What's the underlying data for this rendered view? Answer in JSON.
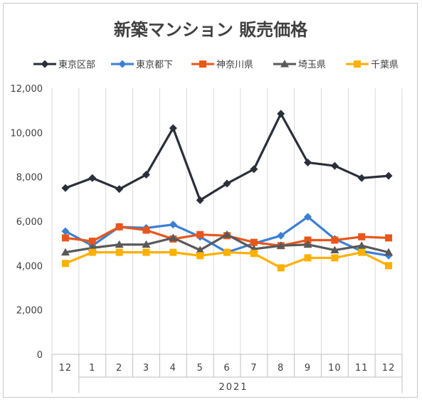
{
  "chart_data": {
    "type": "line",
    "title": "新築マンション 販売価格",
    "x_group_label": "2021",
    "categories": [
      "12",
      "1",
      "2",
      "3",
      "4",
      "5",
      "6",
      "7",
      "8",
      "9",
      "10",
      "11",
      "12"
    ],
    "y_ticks": [
      "0",
      "2,000",
      "4,000",
      "6,000",
      "8,000",
      "10,000",
      "12,000"
    ],
    "ylim": [
      0,
      12000
    ],
    "grid": "vertical",
    "legend": "top",
    "series": [
      {
        "name": "東京区部",
        "color": "#2a2f3a",
        "marker": "diamond",
        "values": [
          7500,
          7950,
          7450,
          8100,
          10200,
          6950,
          7700,
          8350,
          10850,
          8650,
          8500,
          7950,
          8050
        ]
      },
      {
        "name": "東京都下",
        "color": "#3b7fd4",
        "marker": "diamond",
        "values": [
          5550,
          4900,
          5750,
          5700,
          5850,
          5300,
          4600,
          5000,
          5350,
          6200,
          5200,
          4650,
          4450
        ]
      },
      {
        "name": "神奈川県",
        "color": "#e8561a",
        "marker": "square",
        "values": [
          5250,
          5100,
          5750,
          5600,
          5200,
          5400,
          5350,
          5050,
          4900,
          5150,
          5150,
          5300,
          5250
        ]
      },
      {
        "name": "埼玉県",
        "color": "#595959",
        "marker": "triangle",
        "values": [
          4600,
          4800,
          4950,
          4950,
          5250,
          4700,
          5400,
          4750,
          4900,
          4950,
          4700,
          4900,
          4600
        ]
      },
      {
        "name": "千葉県",
        "color": "#ffb000",
        "marker": "square",
        "values": [
          4100,
          4600,
          4600,
          4600,
          4600,
          4450,
          4600,
          4550,
          3900,
          4350,
          4350,
          4600,
          4000
        ]
      }
    ]
  }
}
